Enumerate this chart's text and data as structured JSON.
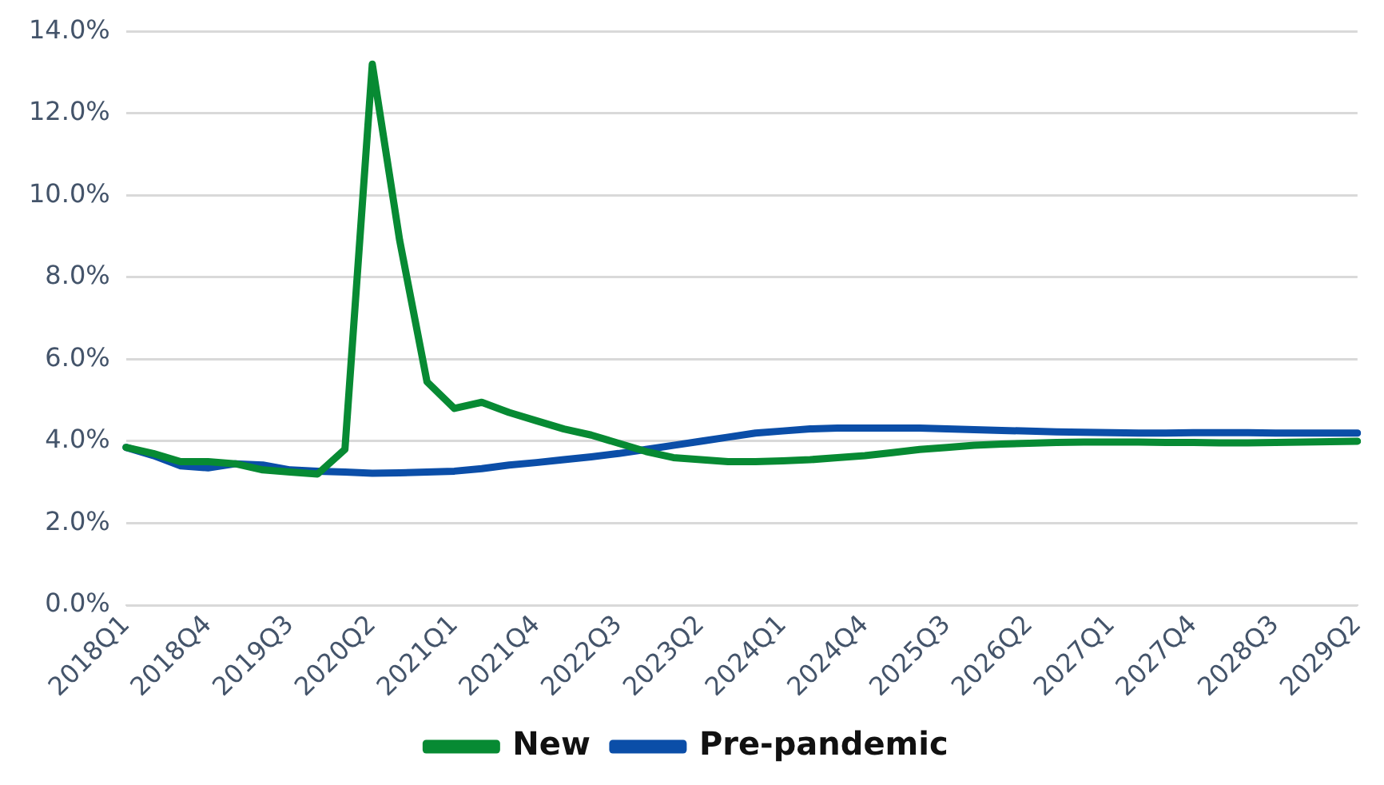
{
  "chart_data": {
    "type": "line",
    "categories": [
      "2018Q1",
      null,
      null,
      "2018Q4",
      null,
      null,
      "2019Q3",
      null,
      null,
      "2020Q2",
      null,
      null,
      "2021Q1",
      null,
      null,
      "2021Q4",
      null,
      null,
      "2022Q3",
      null,
      null,
      "2023Q2",
      null,
      null,
      "2024Q1",
      null,
      null,
      "2024Q4",
      null,
      null,
      "2025Q3",
      null,
      null,
      "2026Q2",
      null,
      null,
      "2027Q1",
      null,
      null,
      "2027Q4",
      null,
      null,
      "2028Q3",
      null,
      null,
      "2029Q2"
    ],
    "series": [
      {
        "name": "New",
        "color": "#078a33",
        "values": [
          3.85,
          3.7,
          3.5,
          3.5,
          3.45,
          3.3,
          3.25,
          3.2,
          3.8,
          13.2,
          8.9,
          5.45,
          4.8,
          4.95,
          4.7,
          4.5,
          4.3,
          4.15,
          3.95,
          3.75,
          3.6,
          3.55,
          3.5,
          3.5,
          3.52,
          3.55,
          3.6,
          3.65,
          3.72,
          3.8,
          3.85,
          3.9,
          3.93,
          3.95,
          3.97,
          3.98,
          3.98,
          3.98,
          3.97,
          3.97,
          3.96,
          3.96,
          3.97,
          3.98,
          3.99,
          4.0
        ]
      },
      {
        "name": "Pre-pandemic",
        "color": "#0b4ea8",
        "values": [
          3.85,
          3.65,
          3.4,
          3.35,
          3.45,
          3.42,
          3.3,
          3.27,
          3.25,
          3.22,
          3.23,
          3.25,
          3.27,
          3.33,
          3.42,
          3.48,
          3.55,
          3.62,
          3.7,
          3.8,
          3.9,
          4.0,
          4.1,
          4.2,
          4.25,
          4.3,
          4.32,
          4.32,
          4.32,
          4.32,
          4.3,
          4.28,
          4.26,
          4.25,
          4.23,
          4.22,
          4.21,
          4.2,
          4.2,
          4.21,
          4.21,
          4.21,
          4.2,
          4.2,
          4.2,
          4.2
        ]
      }
    ],
    "ylim": [
      0,
      14
    ],
    "yticks": [
      {
        "value": 0,
        "label": "0.0%"
      },
      {
        "value": 2,
        "label": "2.0%"
      },
      {
        "value": 4,
        "label": "4.0%"
      },
      {
        "value": 6,
        "label": "6.0%"
      },
      {
        "value": 8,
        "label": "8.0%"
      },
      {
        "value": 10,
        "label": "10.0%"
      },
      {
        "value": 12,
        "label": "12.0%"
      },
      {
        "value": 14,
        "label": "14.0%"
      }
    ],
    "grid": "y",
    "legend": "bottom",
    "marker": "none",
    "line_style": "solid"
  }
}
